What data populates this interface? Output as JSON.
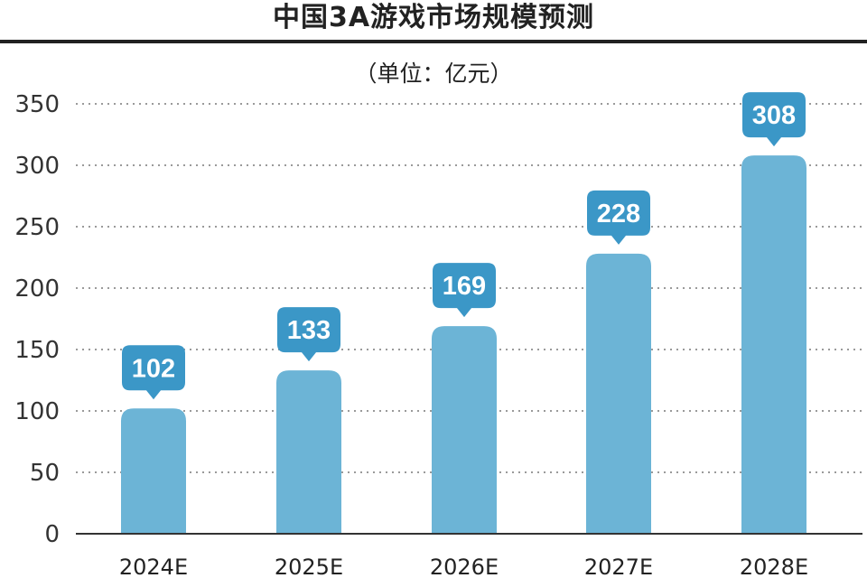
{
  "chart_data": {
    "type": "bar",
    "title": "中国3A游戏市场规模预测",
    "unit_label": "（单位：亿元）",
    "categories": [
      "2024E",
      "2025E",
      "2026E",
      "2027E",
      "2028E"
    ],
    "values": [
      102,
      133,
      169,
      228,
      308
    ],
    "data_labels": [
      "102",
      "133",
      "169",
      "228",
      "308"
    ],
    "y_ticks": [
      0,
      50,
      100,
      150,
      200,
      250,
      300,
      350
    ],
    "ylim": [
      0,
      350
    ],
    "grid": "dotted horizontal",
    "legend": "none",
    "colors": {
      "bar": "#6cb4d6",
      "callout": "#3b97c7",
      "callout_text": "#ffffff",
      "title_rule": "#222222",
      "grid": "#9a9a9a",
      "axis": "#333333",
      "text": "#222222"
    }
  }
}
